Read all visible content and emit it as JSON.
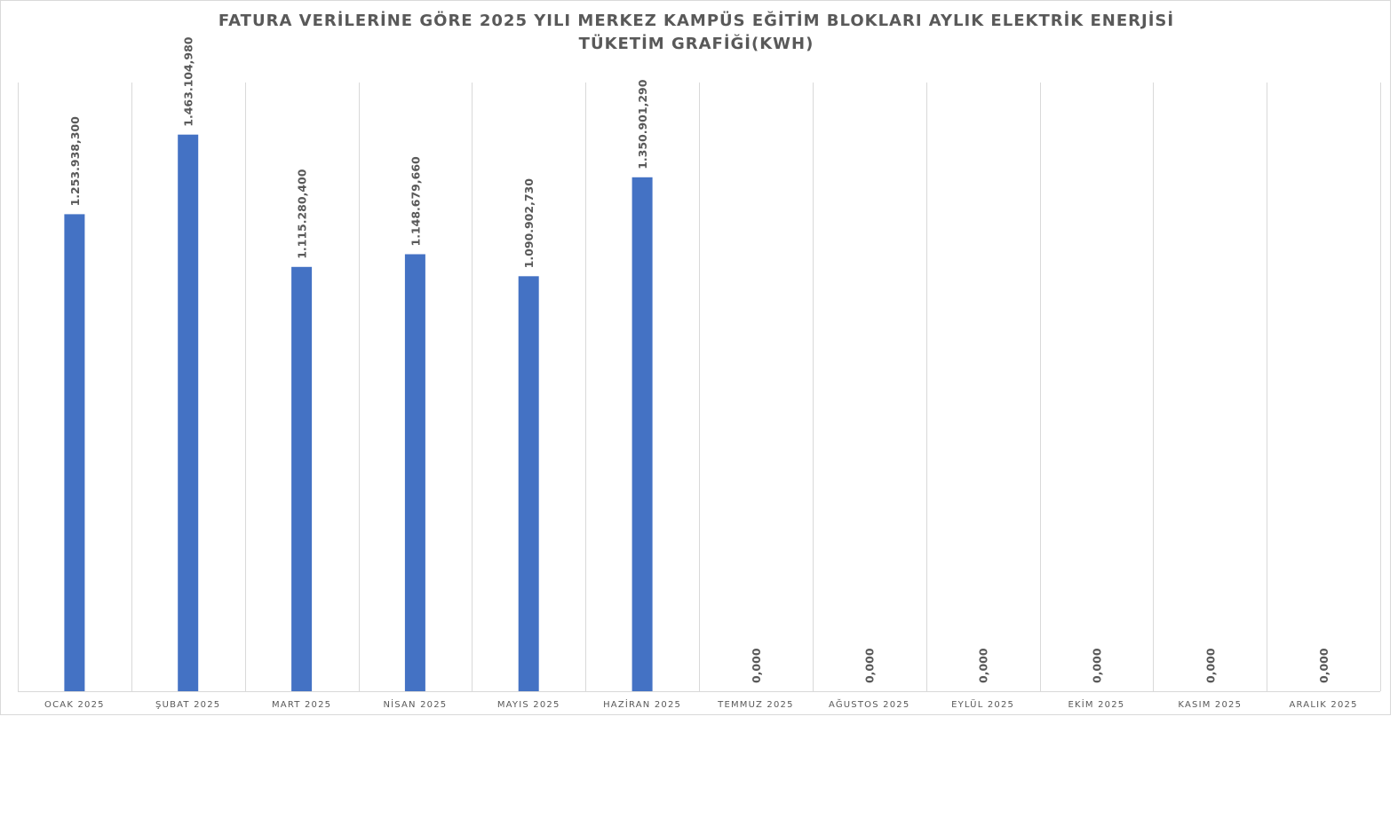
{
  "chart_data": {
    "type": "bar",
    "title": "FATURA VERİLERİNE GÖRE 2025 YILI MERKEZ KAMPÜS EĞİTİM BLOKLARI AYLIK ELEKTRİK ENERJİSİ TÜKETİM GRAFİĞİ(KWH)",
    "xlabel": "",
    "ylabel": "",
    "categories": [
      "OCAK 2025",
      "ŞUBAT 2025",
      "MART 2025",
      "NİSAN 2025",
      "MAYIS 2025",
      "HAZİRAN 2025",
      "TEMMUZ 2025",
      "AĞUSTOS 2025",
      "EYLÜL 2025",
      "EKİM 2025",
      "KASIM 2025",
      "ARALIK 2025"
    ],
    "values": [
      1253938.3,
      1463104.98,
      1115280.4,
      1148679.66,
      1090902.73,
      1350901.29,
      0,
      0,
      0,
      0,
      0,
      0
    ],
    "data_labels": [
      "1.253.938,300",
      "1.463.104,980",
      "1.115.280,400",
      "1.148.679,660",
      "1.090.902,730",
      "1.350.901,290",
      "0,000",
      "0,000",
      "0,000",
      "0,000",
      "0,000",
      "0,000"
    ],
    "ylim": [
      0,
      1600000
    ],
    "grid": "vertical",
    "legend": "none",
    "bar_color": "#4472c4",
    "grid_color": "#d9d9d9",
    "text_color": "#595959"
  }
}
